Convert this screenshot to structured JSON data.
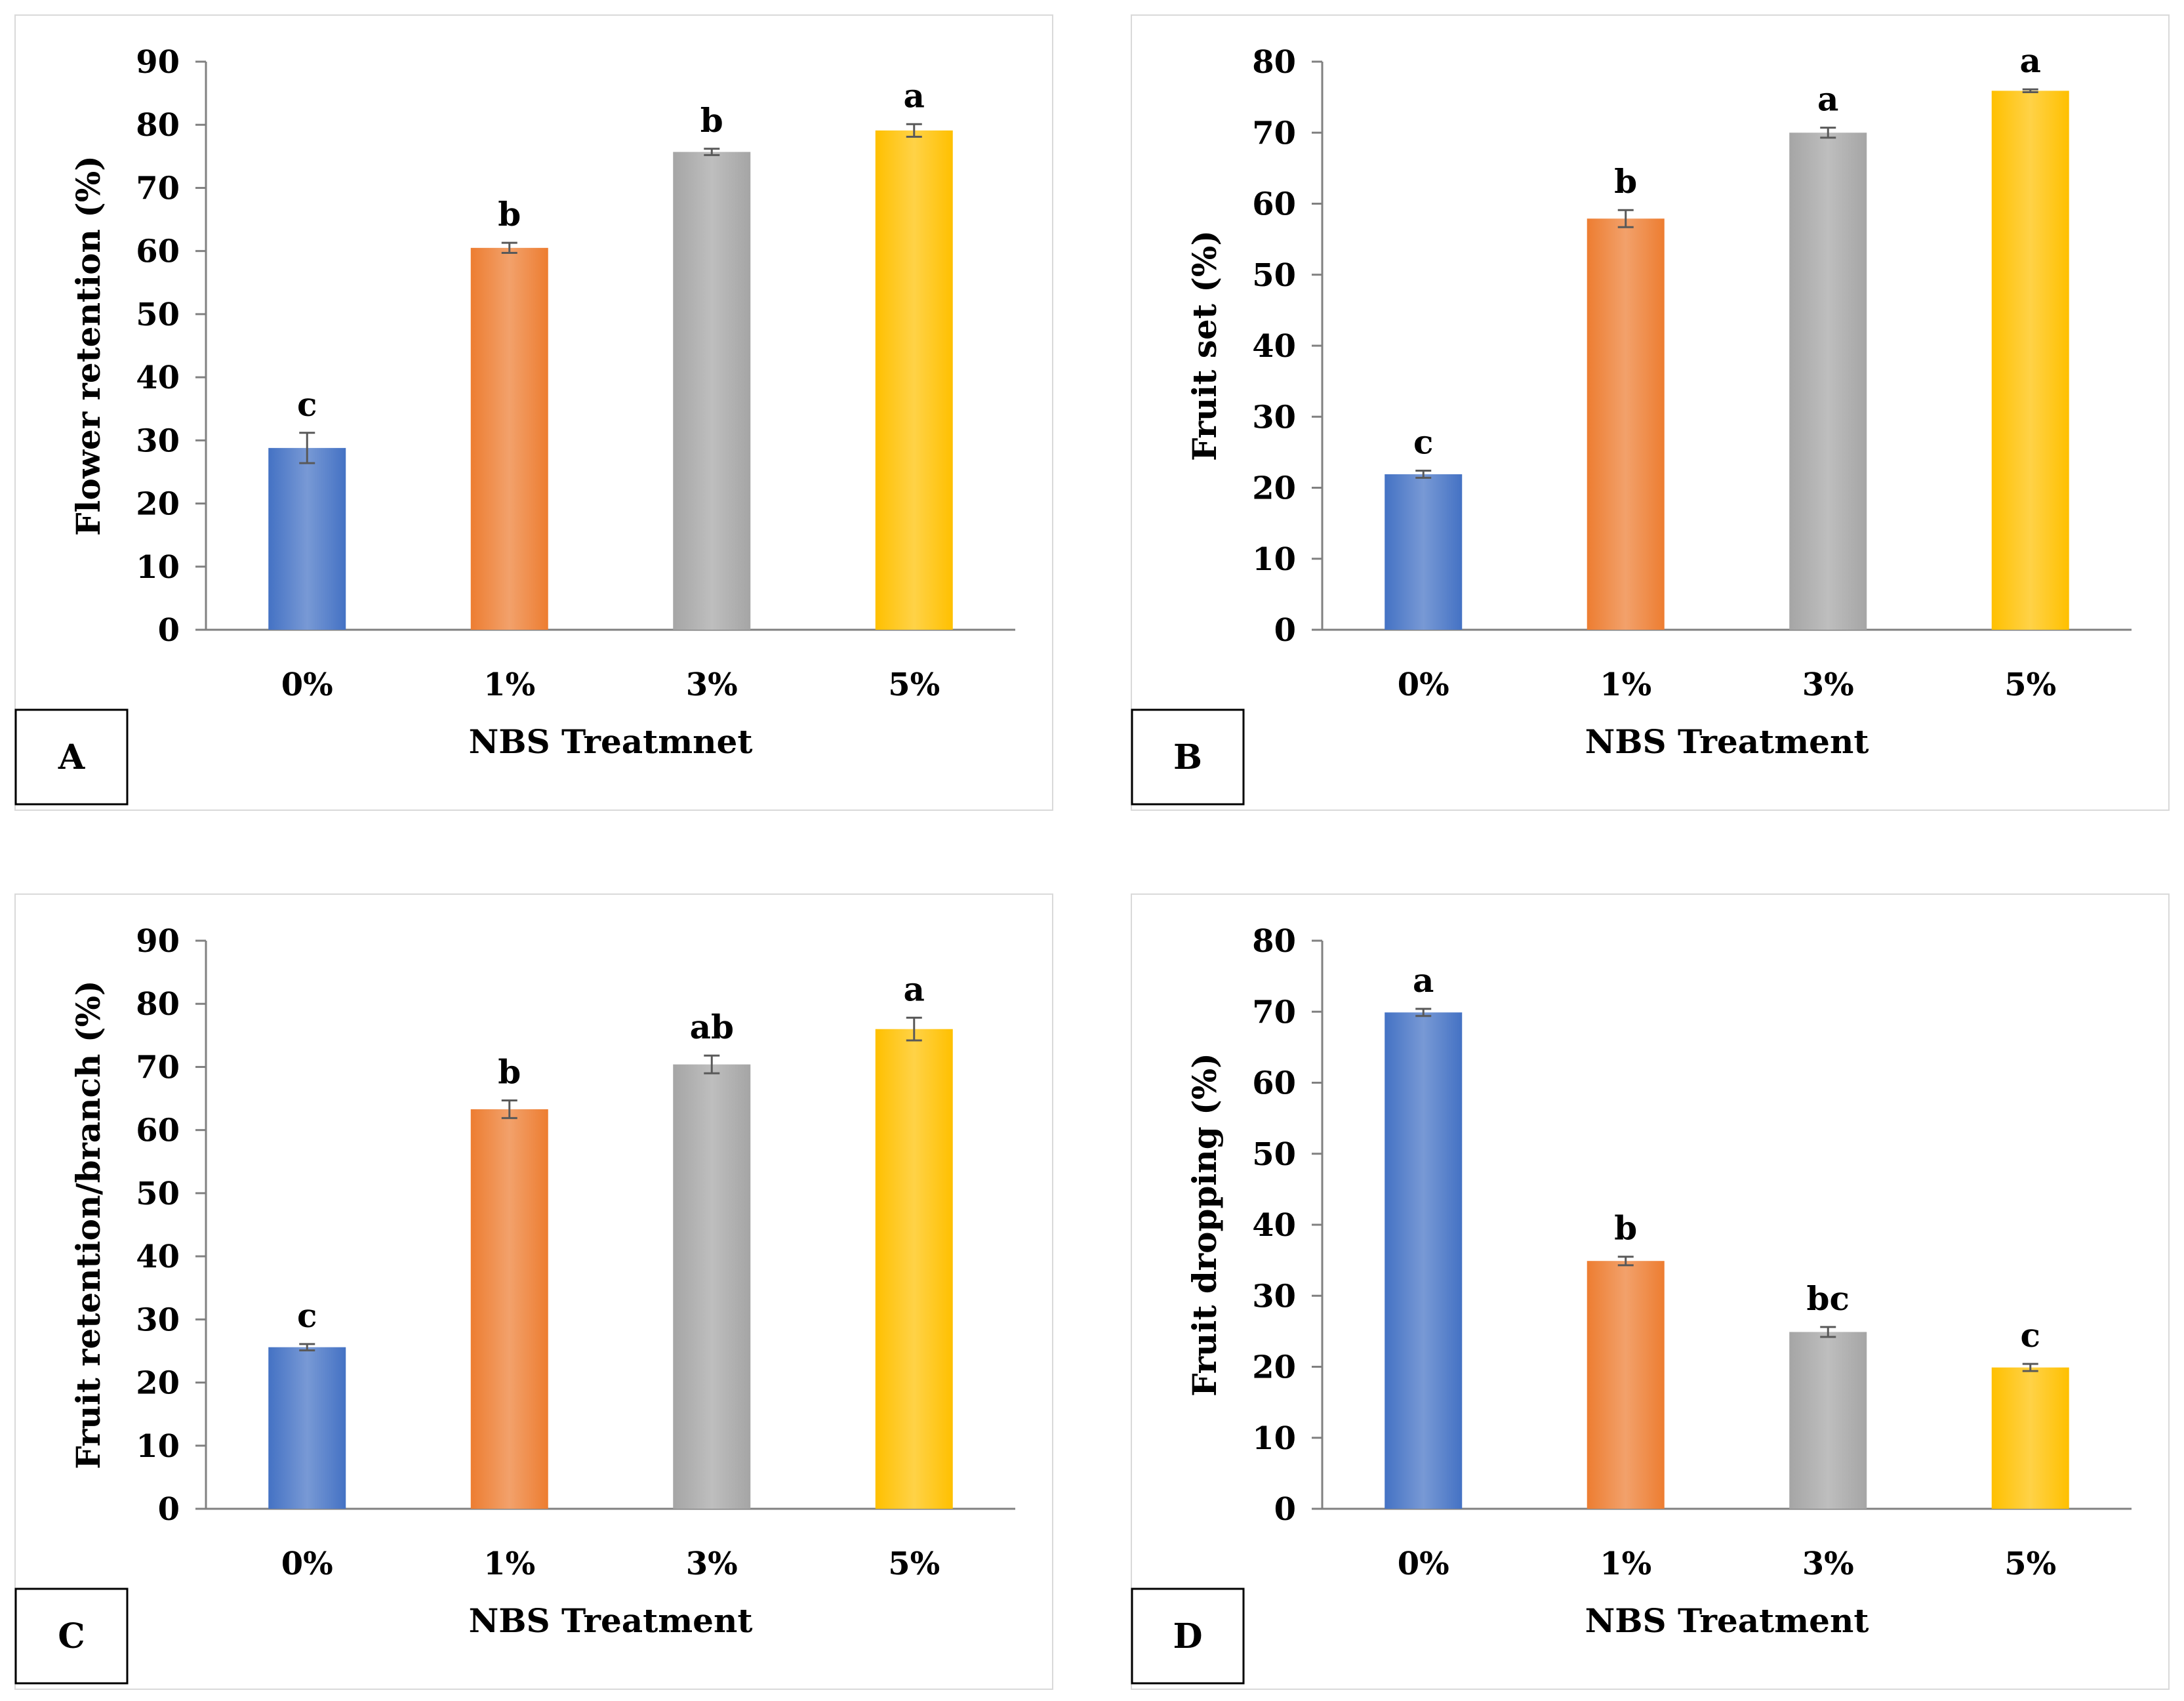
{
  "colors": {
    "blue": "#4472C4",
    "orange": "#ED7D31",
    "gray": "#A5A5A5",
    "yellow": "#FFC000"
  },
  "chart_data": [
    {
      "id": "A",
      "type": "bar",
      "panel_label": "A",
      "xlabel": "NBS Treatmnet",
      "ylabel": "Flower retention (%)",
      "ylim": [
        0,
        90
      ],
      "ytick_step": 10,
      "categories": [
        "0%",
        "1%",
        "3%",
        "5%"
      ],
      "values": [
        28.8,
        60.5,
        75.7,
        79.1
      ],
      "errors": [
        2.4,
        0.8,
        0.5,
        1.0
      ],
      "letters": [
        "c",
        "b",
        "b",
        "a"
      ]
    },
    {
      "id": "B",
      "type": "bar",
      "panel_label": "B",
      "xlabel": "NBS Treatment",
      "ylabel": "Fruit set (%)",
      "ylim": [
        0,
        80
      ],
      "ytick_step": 10,
      "categories": [
        "0%",
        "1%",
        "3%",
        "5%"
      ],
      "values": [
        21.9,
        57.9,
        70.0,
        75.9
      ],
      "errors": [
        0.5,
        1.2,
        0.7,
        0.2
      ],
      "letters": [
        "c",
        "b",
        "a",
        "a"
      ]
    },
    {
      "id": "C",
      "type": "bar",
      "panel_label": "C",
      "xlabel": "NBS Treatment",
      "ylabel": "Fruit retention/branch (%)",
      "ylim": [
        0,
        90
      ],
      "ytick_step": 10,
      "categories": [
        "0%",
        "1%",
        "3%",
        "5%"
      ],
      "values": [
        25.6,
        63.3,
        70.4,
        76.0
      ],
      "errors": [
        0.5,
        1.4,
        1.4,
        1.8
      ],
      "letters": [
        "c",
        "b",
        "ab",
        "a"
      ]
    },
    {
      "id": "D",
      "type": "bar",
      "panel_label": "D",
      "xlabel": "NBS Treatment",
      "ylabel": "Fruit dropping (%)",
      "ylim": [
        0,
        80
      ],
      "ytick_step": 10,
      "categories": [
        "0%",
        "1%",
        "3%",
        "5%"
      ],
      "values": [
        69.9,
        34.9,
        24.9,
        19.9
      ],
      "errors": [
        0.5,
        0.6,
        0.7,
        0.5
      ],
      "letters": [
        "a",
        "b",
        "bc",
        "c"
      ]
    }
  ]
}
